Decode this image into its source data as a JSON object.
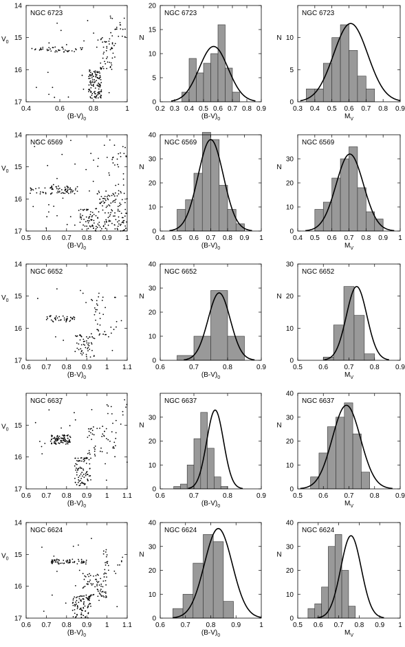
{
  "chart_data": [
    {
      "id": "r0c0",
      "type": "scatter",
      "title": "NGC 6723",
      "xlabel": "(B-V)",
      "xlabel_sub": "0",
      "ylabel": "V",
      "ylabel_sub": "0",
      "xlim": [
        0.4,
        1.0
      ],
      "ylim": [
        14,
        17
      ],
      "y_inverted": true,
      "xticks": [
        0.4,
        0.6,
        0.8,
        1.0
      ],
      "xtick_labels": [
        "0.4",
        "0.6",
        "0.8",
        "1"
      ],
      "yticks": [
        14,
        15,
        16,
        17
      ],
      "ytick_labels": [
        "14",
        "15",
        "16",
        "17"
      ],
      "groups": [
        {
          "x": [
            0.43,
            0.74
          ],
          "y": [
            15.3,
            15.45
          ],
          "n": 42
        },
        {
          "x": [
            0.77,
            0.85
          ],
          "y": [
            16.0,
            16.9
          ],
          "n": 110
        },
        {
          "x": [
            0.84,
            0.93
          ],
          "y": [
            15.0,
            16.0
          ],
          "n": 45
        },
        {
          "x": [
            0.9,
            1.0
          ],
          "y": [
            14.2,
            15.0
          ],
          "n": 15
        },
        {
          "x": [
            0.45,
            1.0
          ],
          "y": [
            14.1,
            16.9
          ],
          "n": 25
        }
      ]
    },
    {
      "id": "r0c1",
      "type": "bar",
      "title": "NGC 6723",
      "xlabel": "(B-V)",
      "xlabel_sub": "0",
      "ylabel": "N",
      "xlim": [
        0.2,
        0.9
      ],
      "ylim": [
        0,
        20
      ],
      "xticks": [
        0.2,
        0.3,
        0.4,
        0.5,
        0.6,
        0.7,
        0.8,
        0.9
      ],
      "xtick_labels": [
        "0.2",
        "0.3",
        "0.4",
        "0.5",
        "0.6",
        "0.7",
        "0.8",
        "0.9"
      ],
      "yticks": [
        0,
        5,
        10,
        15,
        20
      ],
      "ytick_labels": [
        "0",
        "5",
        "10",
        "15",
        "20"
      ],
      "bin_start": 0.35,
      "bin_width": 0.05,
      "values": [
        2,
        9,
        6,
        8,
        10,
        16,
        7,
        2
      ],
      "fit": {
        "mean": 0.57,
        "sigma": 0.1,
        "amplitude": 11.5
      }
    },
    {
      "id": "r0c2",
      "type": "bar",
      "title": "NGC 6723",
      "xlabel": "M",
      "xlabel_sub": "V",
      "ylabel": "N",
      "xlim": [
        0.3,
        0.9
      ],
      "ylim": [
        0,
        15
      ],
      "xticks": [
        0.3,
        0.4,
        0.5,
        0.6,
        0.7,
        0.8,
        0.9
      ],
      "xtick_labels": [
        "0.3",
        "0.4",
        "0.5",
        "0.6",
        "0.7",
        "0.8",
        "0.9"
      ],
      "yticks": [
        0,
        5,
        10
      ],
      "ytick_labels": [
        "0",
        "5",
        "10"
      ],
      "bin_start": 0.35,
      "bin_width": 0.05,
      "values": [
        2,
        2,
        6,
        10,
        12,
        8,
        4,
        2
      ],
      "fit": {
        "mean": 0.61,
        "sigma": 0.1,
        "amplitude": 12.2
      }
    },
    {
      "id": "r1c0",
      "type": "scatter",
      "title": "NGC 6569",
      "xlabel": "(B-V)",
      "xlabel_sub": "0",
      "ylabel": "V",
      "ylabel_sub": "0",
      "xlim": [
        0.5,
        1.0
      ],
      "ylim": [
        14,
        17
      ],
      "y_inverted": true,
      "xticks": [
        0.5,
        0.6,
        0.7,
        0.8,
        0.9,
        1.0
      ],
      "xtick_labels": [
        "0.5",
        "0.6",
        "0.7",
        "0.8",
        "0.9",
        "1"
      ],
      "yticks": [
        14,
        15,
        16,
        17
      ],
      "ytick_labels": [
        "14",
        "15",
        "16",
        "17"
      ],
      "groups": [
        {
          "x": [
            0.52,
            0.76
          ],
          "y": [
            15.6,
            15.85
          ],
          "n": 70
        },
        {
          "x": [
            0.76,
            1.0
          ],
          "y": [
            16.3,
            17.0
          ],
          "n": 120
        },
        {
          "x": [
            0.85,
            0.98
          ],
          "y": [
            15.7,
            16.3
          ],
          "n": 50
        },
        {
          "x": [
            0.9,
            1.0
          ],
          "y": [
            14.3,
            15.6
          ],
          "n": 25
        },
        {
          "x": [
            0.52,
            1.0
          ],
          "y": [
            14.1,
            17.0
          ],
          "n": 40
        }
      ]
    },
    {
      "id": "r1c1",
      "type": "bar",
      "title": "NGC 6569",
      "xlabel": "(B-V)",
      "xlabel_sub": "0",
      "ylabel": "N",
      "xlim": [
        0.4,
        1.0
      ],
      "ylim": [
        0,
        40
      ],
      "xticks": [
        0.4,
        0.5,
        0.6,
        0.7,
        0.8,
        0.9,
        1.0
      ],
      "xtick_labels": [
        "0.4",
        "0.5",
        "0.6",
        "0.7",
        "0.8",
        "0.9",
        "1"
      ],
      "yticks": [
        0,
        10,
        20,
        30,
        40
      ],
      "ytick_labels": [
        "0",
        "10",
        "20",
        "30",
        "40"
      ],
      "bin_start": 0.5,
      "bin_width": 0.05,
      "values": [
        9,
        13,
        24,
        41,
        38,
        19,
        9,
        3
      ],
      "fit": {
        "mean": 0.7,
        "sigma": 0.075,
        "amplitude": 38
      }
    },
    {
      "id": "r1c2",
      "type": "bar",
      "title": "NGC 6569",
      "xlabel": "M",
      "xlabel_sub": "V",
      "ylabel": "N",
      "xlim": [
        0.4,
        1.0
      ],
      "ylim": [
        0,
        40
      ],
      "xticks": [
        0.4,
        0.5,
        0.6,
        0.7,
        0.8,
        0.9,
        1.0
      ],
      "xtick_labels": [
        "0.4",
        "0.5",
        "0.6",
        "0.7",
        "0.8",
        "0.9",
        "1"
      ],
      "yticks": [
        0,
        10,
        20,
        30
      ],
      "ytick_labels": [
        "0",
        "10",
        "20",
        "30"
      ],
      "bin_start": 0.5,
      "bin_width": 0.05,
      "values": [
        9,
        12,
        22,
        30,
        35,
        18,
        8,
        5
      ],
      "fit": {
        "mean": 0.705,
        "sigma": 0.08,
        "amplitude": 32
      }
    },
    {
      "id": "r2c0",
      "type": "scatter",
      "title": "NGC 6652",
      "xlabel": "(B-V)",
      "xlabel_sub": "0",
      "ylabel": "V",
      "ylabel_sub": "0",
      "xlim": [
        0.6,
        1.1
      ],
      "ylim": [
        14,
        17
      ],
      "y_inverted": true,
      "xticks": [
        0.6,
        0.7,
        0.8,
        0.9,
        1.0,
        1.1
      ],
      "xtick_labels": [
        "0.6",
        "0.7",
        "0.8",
        "0.9",
        "1",
        "1.1"
      ],
      "yticks": [
        14,
        15,
        16,
        17
      ],
      "ytick_labels": [
        "14",
        "15",
        "16",
        "17"
      ],
      "groups": [
        {
          "x": [
            0.7,
            0.84
          ],
          "y": [
            15.6,
            15.8
          ],
          "n": 40
        },
        {
          "x": [
            0.84,
            0.94
          ],
          "y": [
            16.2,
            16.9
          ],
          "n": 50
        },
        {
          "x": [
            0.92,
            1.05
          ],
          "y": [
            15.0,
            16.3
          ],
          "n": 35
        },
        {
          "x": [
            0.62,
            1.08
          ],
          "y": [
            14.4,
            16.9
          ],
          "n": 15
        }
      ]
    },
    {
      "id": "r2c1",
      "type": "bar",
      "title": "NGC 6652",
      "xlabel": "(B-V)",
      "xlabel_sub": "0",
      "ylabel": "N",
      "xlim": [
        0.6,
        0.9
      ],
      "ylim": [
        0,
        40
      ],
      "xticks": [
        0.6,
        0.7,
        0.8,
        0.9
      ],
      "xtick_labels": [
        "0.6",
        "0.7",
        "0.8",
        "0.9"
      ],
      "yticks": [
        0,
        10,
        20,
        30,
        40
      ],
      "ytick_labels": [
        "0",
        "10",
        "20",
        "30",
        "40"
      ],
      "bin_start": 0.65,
      "bin_width": 0.05,
      "values": [
        2,
        10,
        29,
        10
      ],
      "fit": {
        "mean": 0.775,
        "sigma": 0.033,
        "amplitude": 28
      }
    },
    {
      "id": "r2c2",
      "type": "bar",
      "title": "NGC 6652",
      "xlabel": "M",
      "xlabel_sub": "V",
      "ylabel": "N",
      "xlim": [
        0.5,
        0.9
      ],
      "ylim": [
        0,
        30
      ],
      "xticks": [
        0.5,
        0.6,
        0.7,
        0.8,
        0.9
      ],
      "xtick_labels": [
        "0.5",
        "0.6",
        "0.7",
        "0.8",
        "0.9"
      ],
      "yticks": [
        0,
        10,
        20,
        30
      ],
      "ytick_labels": [
        "0",
        "10",
        "20",
        "30"
      ],
      "bin_start": 0.6,
      "bin_width": 0.04,
      "values": [
        1,
        11,
        23,
        14,
        2
      ],
      "fit": {
        "mean": 0.73,
        "sigma": 0.04,
        "amplitude": 23
      }
    },
    {
      "id": "r3c0",
      "type": "scatter",
      "title": "NGC 6637",
      "xlabel": "(B-V)",
      "xlabel_sub": "0",
      "ylabel": "V",
      "ylabel_sub": "0",
      "xlim": [
        0.6,
        1.1
      ],
      "ylim": [
        14,
        17
      ],
      "y_inverted": true,
      "xticks": [
        0.6,
        0.7,
        0.8,
        0.9,
        1.0,
        1.1
      ],
      "xtick_labels": [
        "0.6",
        "0.7",
        "0.8",
        "0.9",
        "1",
        "1.1"
      ],
      "yticks": [
        15,
        16,
        17
      ],
      "ytick_labels": [
        "15",
        "16",
        "17"
      ],
      "groups": [
        {
          "x": [
            0.72,
            0.82
          ],
          "y": [
            15.3,
            15.6
          ],
          "n": 90
        },
        {
          "x": [
            0.84,
            0.92
          ],
          "y": [
            16.0,
            16.9
          ],
          "n": 80
        },
        {
          "x": [
            0.9,
            1.05
          ],
          "y": [
            15.0,
            16.0
          ],
          "n": 45
        },
        {
          "x": [
            1.0,
            1.1
          ],
          "y": [
            14.3,
            15.0
          ],
          "n": 12
        },
        {
          "x": [
            0.62,
            1.1
          ],
          "y": [
            14.2,
            17.0
          ],
          "n": 20
        }
      ]
    },
    {
      "id": "r3c1",
      "type": "bar",
      "title": "NGC 6637",
      "xlabel": "(B-V)",
      "xlabel_sub": "0",
      "ylabel": "N",
      "xlim": [
        0.6,
        0.9
      ],
      "ylim": [
        0,
        40
      ],
      "xticks": [
        0.6,
        0.7,
        0.8,
        0.9
      ],
      "xtick_labels": [
        "0.6",
        "0.7",
        "0.8",
        "0.9"
      ],
      "yticks": [
        0,
        10,
        20,
        30
      ],
      "ytick_labels": [
        "0",
        "10",
        "20",
        "30"
      ],
      "bin_start": 0.64,
      "bin_width": 0.02,
      "values": [
        1,
        2,
        10,
        21,
        32,
        17,
        5,
        1
      ],
      "fit": {
        "mean": 0.763,
        "sigma": 0.025,
        "amplitude": 33
      }
    },
    {
      "id": "r3c2",
      "type": "bar",
      "title": "NGC 6637",
      "xlabel": "M",
      "xlabel_sub": "V",
      "ylabel": "N",
      "xlim": [
        0.5,
        0.9
      ],
      "ylim": [
        0,
        40
      ],
      "xticks": [
        0.5,
        0.6,
        0.7,
        0.8,
        0.9
      ],
      "xtick_labels": [
        "0.5",
        "0.6",
        "0.7",
        "0.8",
        "0.9"
      ],
      "yticks": [
        0,
        10,
        20,
        30,
        40
      ],
      "ytick_labels": [
        "0",
        "10",
        "20",
        "30",
        "40"
      ],
      "bin_start": 0.55,
      "bin_width": 0.033,
      "values": [
        5,
        15,
        26,
        30,
        36,
        23,
        7
      ],
      "fit": {
        "mean": 0.69,
        "sigma": 0.055,
        "amplitude": 35
      }
    },
    {
      "id": "r4c0",
      "type": "scatter",
      "title": "NGC 6624",
      "xlabel": "(B-V)",
      "xlabel_sub": "0",
      "ylabel": "V",
      "ylabel_sub": "0",
      "xlim": [
        0.6,
        1.1
      ],
      "ylim": [
        14,
        17
      ],
      "y_inverted": true,
      "xticks": [
        0.6,
        0.7,
        0.8,
        0.9,
        1.0,
        1.1
      ],
      "xtick_labels": [
        "0.6",
        "0.7",
        "0.8",
        "0.9",
        "1",
        "1.1"
      ],
      "yticks": [
        14,
        15,
        16,
        17
      ],
      "ytick_labels": [
        "14",
        "15",
        "16",
        "17"
      ],
      "groups": [
        {
          "x": [
            0.72,
            0.9
          ],
          "y": [
            15.15,
            15.3
          ],
          "n": 60
        },
        {
          "x": [
            0.83,
            0.92
          ],
          "y": [
            16.3,
            17.0
          ],
          "n": 80
        },
        {
          "x": [
            0.88,
            1.0
          ],
          "y": [
            15.6,
            16.4
          ],
          "n": 70
        },
        {
          "x": [
            0.98,
            1.08
          ],
          "y": [
            14.8,
            15.6
          ],
          "n": 20
        },
        {
          "x": [
            0.62,
            1.1
          ],
          "y": [
            14.1,
            17.0
          ],
          "n": 20
        }
      ]
    },
    {
      "id": "r4c1",
      "type": "bar",
      "title": "NGC 6624",
      "xlabel": "(B-V)",
      "xlabel_sub": "0",
      "ylabel": "N",
      "xlim": [
        0.6,
        1.0
      ],
      "ylim": [
        0,
        40
      ],
      "xticks": [
        0.6,
        0.7,
        0.8,
        0.9,
        1.0
      ],
      "xtick_labels": [
        "0.6",
        "0.7",
        "0.8",
        "0.9",
        "1"
      ],
      "yticks": [
        0,
        10,
        20,
        30,
        40
      ],
      "ytick_labels": [
        "0",
        "10",
        "20",
        "30",
        "40"
      ],
      "bin_start": 0.65,
      "bin_width": 0.04,
      "values": [
        4,
        10,
        23,
        35,
        32,
        7
      ],
      "fit": {
        "mean": 0.83,
        "sigma": 0.055,
        "amplitude": 37.5
      }
    },
    {
      "id": "r4c2",
      "type": "bar",
      "title": "NGC 6624",
      "xlabel": "M",
      "xlabel_sub": "V",
      "ylabel": "N",
      "xlim": [
        0.5,
        1.0
      ],
      "ylim": [
        0,
        40
      ],
      "xticks": [
        0.5,
        0.6,
        0.7,
        0.8,
        0.9,
        1.0
      ],
      "xtick_labels": [
        "0.5",
        "0.6",
        "0.7",
        "0.8",
        "0.9",
        "1"
      ],
      "yticks": [
        0,
        10,
        20,
        30,
        40
      ],
      "ytick_labels": [
        "0",
        "10",
        "20",
        "30",
        "40"
      ],
      "bin_start": 0.55,
      "bin_width": 0.033,
      "values": [
        4,
        6,
        13,
        30,
        35,
        20,
        5
      ],
      "fit": {
        "mean": 0.76,
        "sigma": 0.05,
        "amplitude": 34.5
      }
    }
  ]
}
